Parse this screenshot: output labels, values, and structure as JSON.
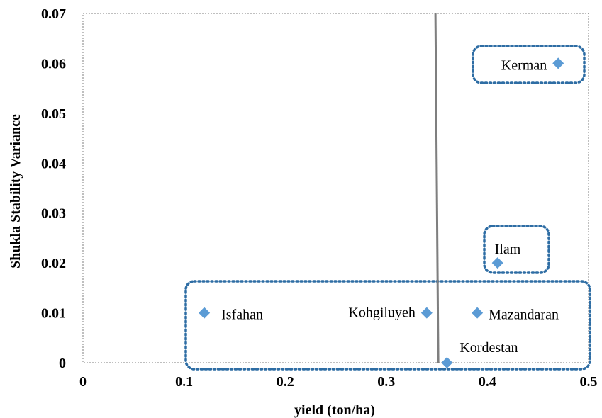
{
  "chart_data": {
    "type": "scatter",
    "xlabel": "yield (ton/ha)",
    "ylabel": "Shukla Stability Variance",
    "xlim": [
      0,
      0.5
    ],
    "ylim": [
      0,
      0.07
    ],
    "x_ticks": [
      "0",
      "0.1",
      "0.2",
      "0.3",
      "0.4",
      "0.5"
    ],
    "y_ticks": [
      "0",
      "0.01",
      "0.02",
      "0.03",
      "0.04",
      "0.05",
      "0.06",
      "0.07"
    ],
    "grid": false,
    "reference_line_x": 0.35,
    "marker_color": "#5b9bd5",
    "points": [
      {
        "label": "Isfahan",
        "x": 0.12,
        "y": 0.01
      },
      {
        "label": "Kohgiluyeh",
        "x": 0.34,
        "y": 0.01
      },
      {
        "label": "Mazandaran",
        "x": 0.39,
        "y": 0.01
      },
      {
        "label": "Kordestan",
        "x": 0.36,
        "y": 0.0
      },
      {
        "label": "Ilam",
        "x": 0.41,
        "y": 0.02
      },
      {
        "label": "Kerman",
        "x": 0.47,
        "y": 0.06
      }
    ],
    "groups": [
      {
        "members": [
          "Kerman"
        ]
      },
      {
        "members": [
          "Ilam"
        ]
      },
      {
        "members": [
          "Isfahan",
          "Kohgiluyeh",
          "Mazandaran",
          "Kordestan"
        ]
      }
    ]
  }
}
